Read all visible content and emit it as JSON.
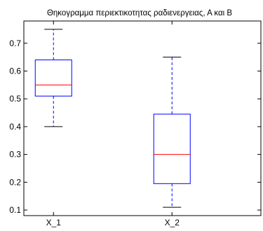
{
  "chart_data": {
    "type": "box",
    "title": "Θηκογραμμα περιεκτικοτητας ραδιενεργειας, Α και Β",
    "xlabel": "",
    "ylabel": "",
    "categories": [
      "X_1",
      "X_2"
    ],
    "ylim": [
      0.08,
      0.78
    ],
    "yticks": [
      0.1,
      0.2,
      0.3,
      0.4,
      0.5,
      0.6,
      0.7
    ],
    "ytick_labels": [
      "0.1",
      "0.2",
      "0.3",
      "0.4",
      "0.5",
      "0.6",
      "0.7"
    ],
    "grid": false,
    "series": [
      {
        "category": "X_1",
        "min": 0.4,
        "q1": 0.51,
        "median": 0.55,
        "q3": 0.64,
        "max": 0.75
      },
      {
        "category": "X_2",
        "min": 0.11,
        "q1": 0.195,
        "median": 0.3,
        "q3": 0.445,
        "max": 0.65
      }
    ],
    "colors": {
      "box": "#0000ff",
      "whisker": "#0000ff",
      "median": "#ff0000",
      "cap": "#000000",
      "axis": "#000000"
    }
  }
}
